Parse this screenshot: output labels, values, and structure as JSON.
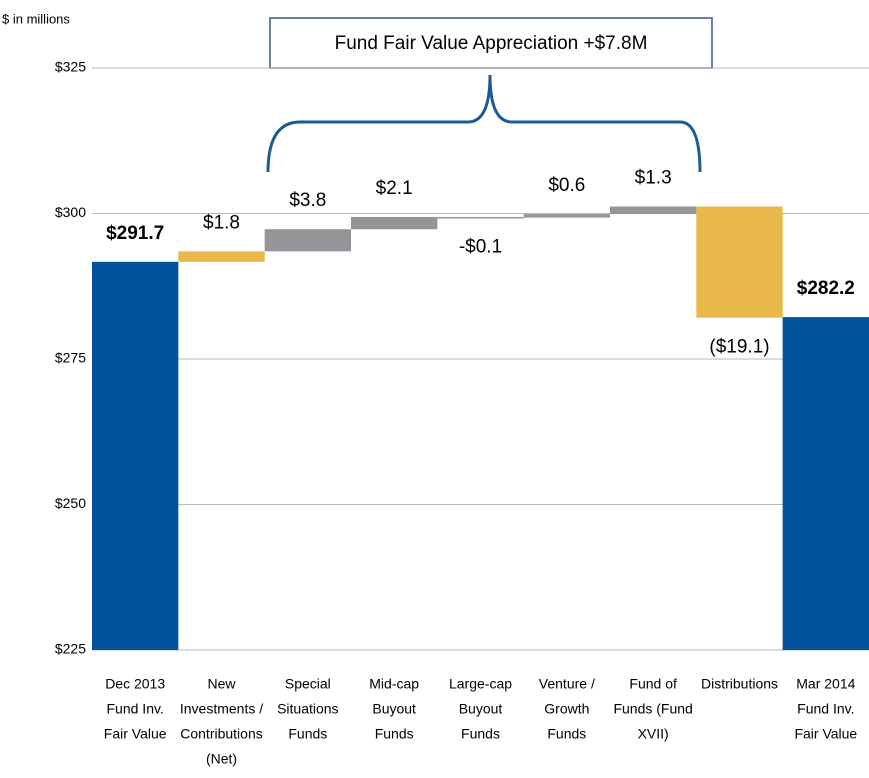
{
  "chart_data": {
    "type": "waterfall",
    "unit_label": "$ in millions",
    "annotation": "Fund Fair Value Appreciation +$7.8M",
    "categories": [
      [
        "Dec 2013",
        "Fund Inv.",
        "Fair Value"
      ],
      [
        "New",
        "Investments /",
        "Contributions",
        "(Net)"
      ],
      [
        "Special",
        "Situations",
        "Funds"
      ],
      [
        "Mid-cap",
        "Buyout",
        "Funds"
      ],
      [
        "Large-cap",
        "Buyout",
        "Funds"
      ],
      [
        "Venture /",
        "Growth",
        "Funds"
      ],
      [
        "Fund of",
        "Funds (Fund",
        "XVII)"
      ],
      [
        "Distributions"
      ],
      [
        "Mar 2014",
        "Fund Inv.",
        "Fair Value"
      ]
    ],
    "measure": [
      "absolute",
      "relative",
      "relative",
      "relative",
      "relative",
      "relative",
      "relative",
      "relative",
      "total"
    ],
    "values": [
      291.7,
      1.8,
      3.8,
      2.1,
      -0.1,
      0.6,
      1.3,
      -19.1,
      282.2
    ],
    "value_labels": [
      "$291.7",
      "$1.8",
      "$3.8",
      "$2.1",
      "-$0.1",
      "$0.6",
      "$1.3",
      "($19.1)",
      "$282.2"
    ],
    "colors": [
      "#00529b",
      "#e8b84b",
      "#939598",
      "#939598",
      "#939598",
      "#939598",
      "#939598",
      "#e8b84b",
      "#00529b"
    ],
    "ylim": [
      225,
      325
    ],
    "yticks": [
      {
        "value": 225,
        "label": "$225"
      },
      {
        "value": 250,
        "label": "$250"
      },
      {
        "value": 275,
        "label": "$275"
      },
      {
        "value": 300,
        "label": "$300"
      },
      {
        "value": 325,
        "label": "$325"
      }
    ],
    "grid": true
  }
}
